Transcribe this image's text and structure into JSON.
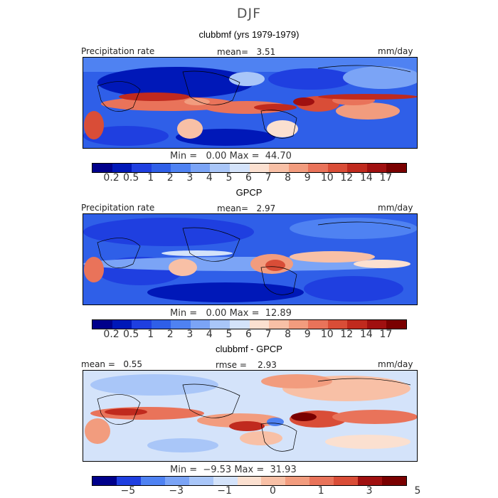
{
  "season": "DJF",
  "panels": [
    {
      "title": "clubbmf (yrs 1979-1979)",
      "header_left": "Precipitation rate",
      "header_mid": "mean=   3.51",
      "header_right": "mm/day",
      "minmax": "Min =   0.00 Max =  44.70",
      "colorbar_ticks": [
        "0.2",
        "0.5",
        "1",
        "2",
        "3",
        "4",
        "5",
        "6",
        "7",
        "8",
        "9",
        "10",
        "12",
        "14",
        "17"
      ]
    },
    {
      "title": "GPCP",
      "header_left": "Precipitation rate",
      "header_mid": "mean=   2.97",
      "header_right": "mm/day",
      "minmax": "Min =   0.00 Max =  12.89",
      "colorbar_ticks": [
        "0.2",
        "0.5",
        "1",
        "2",
        "3",
        "4",
        "5",
        "6",
        "7",
        "8",
        "9",
        "10",
        "12",
        "14",
        "17"
      ]
    },
    {
      "title": "clubbmf - GPCP",
      "header_left": "mean =   0.55",
      "header_mid": "rmse =    2.93",
      "header_right": "mm/day",
      "minmax": "Min =  −9.53 Max =  31.93",
      "colorbar_ticks": [
        "−5",
        "−3",
        "−1",
        "0",
        "1",
        "3",
        "5"
      ]
    }
  ],
  "chart_data": [
    {
      "type": "heatmap",
      "title": "clubbmf (yrs 1979-1979)",
      "variable": "Precipitation rate",
      "units": "mm/day",
      "mean": 3.51,
      "min": 0.0,
      "max": 44.7,
      "levels": [
        0.2,
        0.5,
        1,
        2,
        3,
        4,
        5,
        6,
        7,
        8,
        9,
        10,
        12,
        14,
        17
      ]
    },
    {
      "type": "heatmap",
      "title": "GPCP",
      "variable": "Precipitation rate",
      "units": "mm/day",
      "mean": 2.97,
      "min": 0.0,
      "max": 12.89,
      "levels": [
        0.2,
        0.5,
        1,
        2,
        3,
        4,
        5,
        6,
        7,
        8,
        9,
        10,
        12,
        14,
        17
      ]
    },
    {
      "type": "heatmap",
      "title": "clubbmf - GPCP",
      "units": "mm/day",
      "mean": 0.55,
      "rmse": 2.93,
      "min": -9.53,
      "max": 31.93,
      "levels": [
        -5,
        -3,
        -1,
        0,
        1,
        3,
        5
      ]
    }
  ],
  "colors": {
    "seq_scale": [
      "#00008b",
      "#0018b8",
      "#1f3fe0",
      "#2f5fe8",
      "#4f82f2",
      "#7ba4f6",
      "#a9c6f8",
      "#d4e3fa",
      "#fbe0d0",
      "#f8c0a6",
      "#f29c7e",
      "#e9735a",
      "#d94d37",
      "#c02a1e",
      "#a01010",
      "#7a0000"
    ],
    "diff_scale": [
      "#00008b",
      "#1f3fe0",
      "#4f82f2",
      "#7ba4f6",
      "#a9c6f8",
      "#d4e3fa",
      "#fbe0d0",
      "#f8c0a6",
      "#f29c7e",
      "#e9735a",
      "#d94d37",
      "#a01010",
      "#7a0000"
    ]
  }
}
